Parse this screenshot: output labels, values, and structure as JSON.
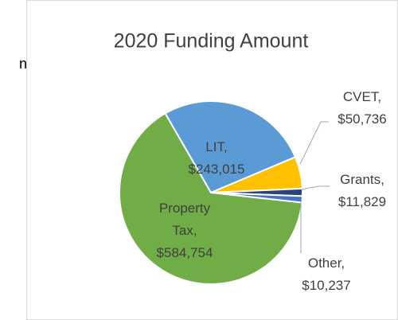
{
  "side_text": "n",
  "chart_data": {
    "type": "pie",
    "title": "2020 Funding  Amount",
    "categories": [
      "LIT,",
      "CVET,",
      "Grants,",
      "Other,",
      "Property Tax,"
    ],
    "values": [
      243015,
      50736,
      11829,
      10237,
      584754
    ],
    "value_labels": [
      "$243,015",
      "$50,736",
      "$11,829",
      "$10,237",
      "$584,754"
    ],
    "colors": [
      "#5b9bd5",
      "#ffc000",
      "#264478",
      "#4472c4",
      "#70ad47"
    ]
  }
}
